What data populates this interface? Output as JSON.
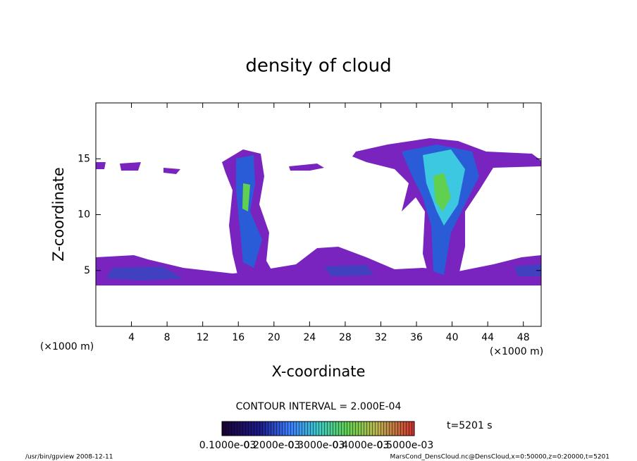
{
  "chart_data": {
    "type": "contour",
    "title": "density of cloud",
    "xlabel": "X-coordinate",
    "ylabel": "Z-coordinate",
    "x_unit_label": "(×1000 m)",
    "xlim": [
      0,
      50
    ],
    "xticks": [
      4,
      8,
      12,
      16,
      20,
      24,
      28,
      32,
      36,
      40,
      44,
      48
    ],
    "ylim": [
      0,
      20
    ],
    "yticks": [
      5,
      10,
      15
    ],
    "contour_interval": "CONTOUR INTERVAL = 2.000E-04",
    "time_label": "t=5201 s",
    "colorbar_labels": [
      "0.1000e-03",
      "0.2000e-03",
      "0.3000e-03",
      "0.4000e-03",
      "0.5000e-03"
    ],
    "footer_left": "/usr/bin/gpview  2008-12-11",
    "footer_right": "MarsCond_DensCloud.nc@DensCloud,x=0:50000,z=0:20000,t=5201"
  }
}
